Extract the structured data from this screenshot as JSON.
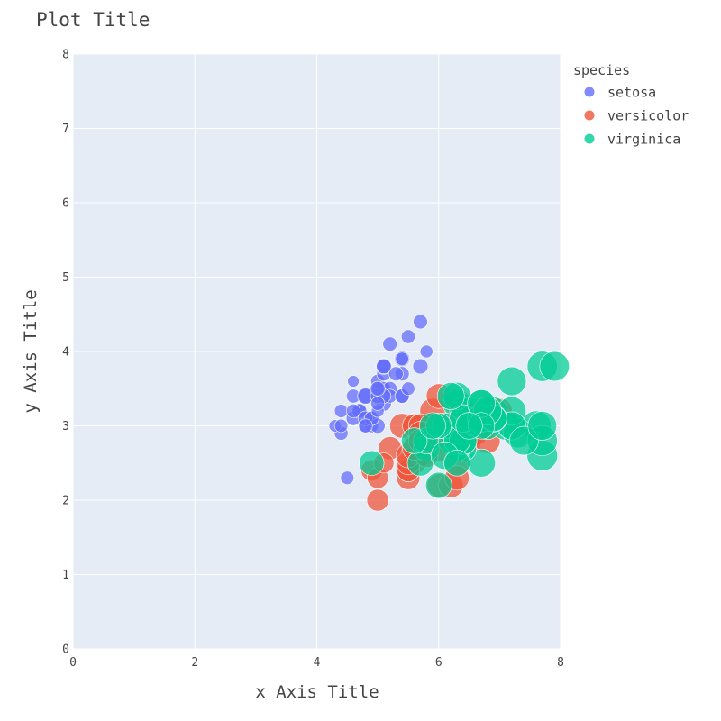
{
  "chart_data": {
    "type": "scatter",
    "title": "Plot Title",
    "xlabel": "x Axis Title",
    "ylabel": "y Axis Title",
    "xlim": [
      0,
      8
    ],
    "ylim": [
      0,
      8
    ],
    "xticks": [
      "0",
      "2",
      "4",
      "6",
      "8"
    ],
    "yticks": [
      "0",
      "1",
      "2",
      "3",
      "4",
      "5",
      "6",
      "7",
      "8"
    ],
    "grid": true,
    "legend_title": "species",
    "legend_position": "right",
    "series": [
      {
        "name": "setosa",
        "color": "#636efa",
        "points": [
          [
            5.1,
            3.5,
            1.4
          ],
          [
            4.9,
            3.0,
            1.4
          ],
          [
            4.7,
            3.2,
            1.3
          ],
          [
            4.6,
            3.1,
            1.5
          ],
          [
            5.0,
            3.6,
            1.4
          ],
          [
            5.4,
            3.9,
            1.7
          ],
          [
            4.6,
            3.4,
            1.4
          ],
          [
            5.0,
            3.4,
            1.5
          ],
          [
            4.4,
            2.9,
            1.4
          ],
          [
            4.9,
            3.1,
            1.5
          ],
          [
            5.4,
            3.7,
            1.5
          ],
          [
            4.8,
            3.4,
            1.6
          ],
          [
            4.8,
            3.0,
            1.4
          ],
          [
            4.3,
            3.0,
            1.1
          ],
          [
            5.8,
            4.0,
            1.2
          ],
          [
            5.7,
            4.4,
            1.5
          ],
          [
            5.4,
            3.9,
            1.3
          ],
          [
            5.1,
            3.5,
            1.4
          ],
          [
            5.7,
            3.8,
            1.7
          ],
          [
            5.1,
            3.8,
            1.5
          ],
          [
            5.4,
            3.4,
            1.7
          ],
          [
            5.1,
            3.7,
            1.5
          ],
          [
            4.6,
            3.6,
            1.0
          ],
          [
            5.1,
            3.3,
            1.7
          ],
          [
            4.8,
            3.4,
            1.9
          ],
          [
            5.0,
            3.0,
            1.6
          ],
          [
            5.0,
            3.4,
            1.6
          ],
          [
            5.2,
            3.5,
            1.5
          ],
          [
            5.2,
            3.4,
            1.4
          ],
          [
            4.7,
            3.2,
            1.6
          ],
          [
            4.8,
            3.1,
            1.6
          ],
          [
            5.4,
            3.4,
            1.5
          ],
          [
            5.2,
            4.1,
            1.5
          ],
          [
            5.5,
            4.2,
            1.4
          ],
          [
            4.9,
            3.1,
            1.5
          ],
          [
            5.0,
            3.2,
            1.2
          ],
          [
            5.5,
            3.5,
            1.3
          ],
          [
            4.4,
            3.0,
            1.3
          ],
          [
            5.1,
            3.4,
            1.5
          ],
          [
            5.0,
            3.5,
            1.3
          ],
          [
            4.5,
            2.3,
            1.3
          ],
          [
            4.4,
            3.2,
            1.3
          ],
          [
            5.0,
            3.5,
            1.6
          ],
          [
            5.1,
            3.8,
            1.9
          ],
          [
            4.8,
            3.0,
            1.4
          ],
          [
            5.1,
            3.8,
            1.6
          ],
          [
            4.6,
            3.2,
            1.4
          ],
          [
            5.3,
            3.7,
            1.5
          ],
          [
            5.0,
            3.3,
            1.4
          ]
        ]
      },
      {
        "name": "versicolor",
        "color": "#ef553b",
        "points": [
          [
            7.0,
            3.2,
            4.7
          ],
          [
            6.4,
            3.2,
            4.5
          ],
          [
            6.9,
            3.1,
            4.9
          ],
          [
            5.5,
            2.3,
            4.0
          ],
          [
            6.5,
            2.8,
            4.6
          ],
          [
            5.7,
            2.8,
            4.5
          ],
          [
            6.3,
            3.3,
            4.7
          ],
          [
            4.9,
            2.4,
            3.3
          ],
          [
            6.6,
            2.9,
            4.6
          ],
          [
            5.2,
            2.7,
            3.9
          ],
          [
            5.0,
            2.0,
            3.5
          ],
          [
            5.9,
            3.0,
            4.2
          ],
          [
            6.0,
            2.2,
            4.0
          ],
          [
            6.1,
            2.9,
            4.7
          ],
          [
            5.6,
            2.9,
            3.6
          ],
          [
            6.7,
            3.1,
            4.4
          ],
          [
            5.6,
            3.0,
            4.5
          ],
          [
            5.8,
            2.7,
            4.1
          ],
          [
            6.2,
            2.2,
            4.5
          ],
          [
            5.6,
            2.5,
            3.9
          ],
          [
            5.9,
            3.2,
            4.8
          ],
          [
            6.1,
            2.8,
            4.0
          ],
          [
            6.3,
            2.5,
            4.9
          ],
          [
            6.1,
            2.8,
            4.7
          ],
          [
            6.4,
            2.9,
            4.3
          ],
          [
            6.6,
            3.0,
            4.4
          ],
          [
            6.8,
            2.8,
            4.8
          ],
          [
            6.7,
            3.0,
            5.0
          ],
          [
            6.0,
            2.9,
            4.5
          ],
          [
            5.7,
            2.6,
            3.5
          ],
          [
            5.5,
            2.4,
            3.8
          ],
          [
            5.5,
            2.4,
            3.7
          ],
          [
            5.8,
            2.7,
            3.9
          ],
          [
            6.0,
            2.7,
            5.1
          ],
          [
            5.4,
            3.0,
            4.5
          ],
          [
            6.0,
            3.4,
            4.5
          ],
          [
            6.7,
            3.1,
            4.7
          ],
          [
            6.3,
            2.3,
            4.4
          ],
          [
            5.6,
            3.0,
            4.1
          ],
          [
            5.5,
            2.5,
            4.0
          ],
          [
            5.5,
            2.6,
            4.4
          ],
          [
            6.1,
            3.0,
            4.6
          ],
          [
            5.8,
            2.6,
            4.0
          ],
          [
            5.0,
            2.3,
            3.3
          ],
          [
            5.6,
            2.7,
            4.2
          ],
          [
            5.7,
            3.0,
            4.2
          ],
          [
            5.7,
            2.9,
            4.2
          ],
          [
            6.2,
            2.9,
            4.3
          ],
          [
            5.1,
            2.5,
            3.0
          ],
          [
            5.7,
            2.8,
            4.1
          ]
        ]
      },
      {
        "name": "virginica",
        "color": "#00cc96",
        "points": [
          [
            6.3,
            3.3,
            6.0
          ],
          [
            5.8,
            2.7,
            5.1
          ],
          [
            7.1,
            3.0,
            5.9
          ],
          [
            6.3,
            2.9,
            5.6
          ],
          [
            6.5,
            3.0,
            5.8
          ],
          [
            7.6,
            3.0,
            6.6
          ],
          [
            4.9,
            2.5,
            4.5
          ],
          [
            7.3,
            2.9,
            6.3
          ],
          [
            6.7,
            2.5,
            5.8
          ],
          [
            7.2,
            3.6,
            6.1
          ],
          [
            6.5,
            3.2,
            5.1
          ],
          [
            6.4,
            2.7,
            5.3
          ],
          [
            6.8,
            3.0,
            5.5
          ],
          [
            5.7,
            2.5,
            5.0
          ],
          [
            5.8,
            2.8,
            5.1
          ],
          [
            6.4,
            3.2,
            5.3
          ],
          [
            6.5,
            3.0,
            5.5
          ],
          [
            7.7,
            3.8,
            6.7
          ],
          [
            7.7,
            2.6,
            6.9
          ],
          [
            6.0,
            2.2,
            5.0
          ],
          [
            6.9,
            3.2,
            5.7
          ],
          [
            5.6,
            2.8,
            4.9
          ],
          [
            7.7,
            2.8,
            6.7
          ],
          [
            6.3,
            2.7,
            4.9
          ],
          [
            6.7,
            3.3,
            5.7
          ],
          [
            7.2,
            3.2,
            6.0
          ],
          [
            6.2,
            2.8,
            4.8
          ],
          [
            6.1,
            3.0,
            4.9
          ],
          [
            6.4,
            2.8,
            5.6
          ],
          [
            7.2,
            3.0,
            5.8
          ],
          [
            7.4,
            2.8,
            6.1
          ],
          [
            7.9,
            3.8,
            6.4
          ],
          [
            6.4,
            2.8,
            5.6
          ],
          [
            6.3,
            2.8,
            5.1
          ],
          [
            6.1,
            2.6,
            5.6
          ],
          [
            7.7,
            3.0,
            6.1
          ],
          [
            6.3,
            3.4,
            5.6
          ],
          [
            6.4,
            3.1,
            5.5
          ],
          [
            6.0,
            3.0,
            4.8
          ],
          [
            6.9,
            3.1,
            5.4
          ],
          [
            6.7,
            3.1,
            5.6
          ],
          [
            6.9,
            3.1,
            5.1
          ],
          [
            6.8,
            3.2,
            5.9
          ],
          [
            6.7,
            3.3,
            5.7
          ],
          [
            6.7,
            3.0,
            5.2
          ],
          [
            6.3,
            2.5,
            5.0
          ],
          [
            6.5,
            3.0,
            5.2
          ],
          [
            6.2,
            3.4,
            5.4
          ],
          [
            5.9,
            3.0,
            5.1
          ]
        ]
      }
    ]
  }
}
